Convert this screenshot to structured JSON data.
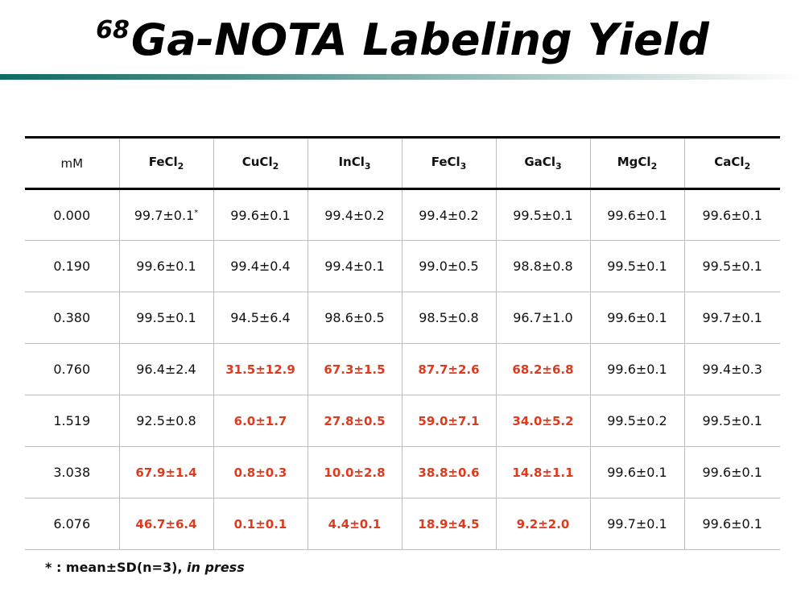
{
  "title": {
    "superscript": "68",
    "text": "Ga-NOTA Labeling Yield"
  },
  "colors": {
    "highlight_red": "#e03a1e",
    "rule_teal": "#0f6b63"
  },
  "table": {
    "row_header_label": "mM",
    "columns": [
      {
        "base": "FeCl",
        "sub": "2"
      },
      {
        "base": "CuCl",
        "sub": "2"
      },
      {
        "base": "InCl",
        "sub": "3"
      },
      {
        "base": "FeCl",
        "sub": "3"
      },
      {
        "base": "GaCl",
        "sub": "3"
      },
      {
        "base": "MgCl",
        "sub": "2"
      },
      {
        "base": "CaCl",
        "sub": "2"
      }
    ],
    "rows": [
      {
        "mm": "0.000",
        "cells": [
          {
            "v": "99.7±0.1",
            "red": false,
            "star": "*"
          },
          {
            "v": "99.6±0.1",
            "red": false
          },
          {
            "v": "99.4±0.2",
            "red": false
          },
          {
            "v": "99.4±0.2",
            "red": false
          },
          {
            "v": "99.5±0.1",
            "red": false
          },
          {
            "v": "99.6±0.1",
            "red": false
          },
          {
            "v": "99.6±0.1",
            "red": false
          }
        ]
      },
      {
        "mm": "0.190",
        "cells": [
          {
            "v": "99.6±0.1",
            "red": false
          },
          {
            "v": "99.4±0.4",
            "red": false
          },
          {
            "v": "99.4±0.1",
            "red": false
          },
          {
            "v": "99.0±0.5",
            "red": false
          },
          {
            "v": "98.8±0.8",
            "red": false
          },
          {
            "v": "99.5±0.1",
            "red": false
          },
          {
            "v": "99.5±0.1",
            "red": false
          }
        ]
      },
      {
        "mm": "0.380",
        "cells": [
          {
            "v": "99.5±0.1",
            "red": false
          },
          {
            "v": "94.5±6.4",
            "red": false
          },
          {
            "v": "98.6±0.5",
            "red": false
          },
          {
            "v": "98.5±0.8",
            "red": false
          },
          {
            "v": "96.7±1.0",
            "red": false
          },
          {
            "v": "99.6±0.1",
            "red": false
          },
          {
            "v": "99.7±0.1",
            "red": false
          }
        ]
      },
      {
        "mm": "0.760",
        "cells": [
          {
            "v": "96.4±2.4",
            "red": false
          },
          {
            "v": "31.5±12.9",
            "red": true
          },
          {
            "v": "67.3±1.5",
            "red": true
          },
          {
            "v": "87.7±2.6",
            "red": true
          },
          {
            "v": "68.2±6.8",
            "red": true
          },
          {
            "v": "99.6±0.1",
            "red": false
          },
          {
            "v": "99.4±0.3",
            "red": false
          }
        ]
      },
      {
        "mm": "1.519",
        "cells": [
          {
            "v": "92.5±0.8",
            "red": false
          },
          {
            "v": "6.0±1.7",
            "red": true
          },
          {
            "v": "27.8±0.5",
            "red": true
          },
          {
            "v": "59.0±7.1",
            "red": true
          },
          {
            "v": "34.0±5.2",
            "red": true
          },
          {
            "v": "99.5±0.2",
            "red": false
          },
          {
            "v": "99.5±0.1",
            "red": false
          }
        ]
      },
      {
        "mm": "3.038",
        "cells": [
          {
            "v": "67.9±1.4",
            "red": true
          },
          {
            "v": "0.8±0.3",
            "red": true
          },
          {
            "v": "10.0±2.8",
            "red": true
          },
          {
            "v": "38.8±0.6",
            "red": true
          },
          {
            "v": "14.8±1.1",
            "red": true
          },
          {
            "v": "99.6±0.1",
            "red": false
          },
          {
            "v": "99.6±0.1",
            "red": false
          }
        ]
      },
      {
        "mm": "6.076",
        "cells": [
          {
            "v": "46.7±6.4",
            "red": true
          },
          {
            "v": "0.1±0.1",
            "red": true
          },
          {
            "v": "4.4±0.1",
            "red": true
          },
          {
            "v": "18.9±4.5",
            "red": true
          },
          {
            "v": "9.2±2.0",
            "red": true
          },
          {
            "v": "99.7±0.1",
            "red": false
          },
          {
            "v": "99.6±0.1",
            "red": false
          }
        ]
      }
    ]
  },
  "footnote": {
    "main": "* : mean±SD(n=3), ",
    "italic": "in press"
  }
}
